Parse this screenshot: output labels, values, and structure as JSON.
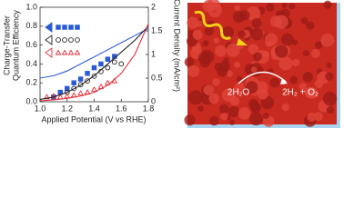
{
  "chart_data": {
    "type": "scatter",
    "xlabel": "Applied Potential (V vs RHE)",
    "ylabel": [
      "Charge-Transfer",
      "Quantum Efficiency"
    ],
    "y2label": "Current Density (mA/cm²)",
    "xlim": [
      1.0,
      1.8
    ],
    "xticks": [
      {
        "value": 1.0,
        "label": "1.0"
      },
      {
        "value": 1.2,
        "label": "1.2"
      },
      {
        "value": 1.4,
        "label": "1.4"
      },
      {
        "value": 1.6,
        "label": "1.6"
      },
      {
        "value": 1.8,
        "label": "1.8"
      }
    ],
    "ylim": [
      0,
      1.0
    ],
    "yticks": [
      {
        "value": 0,
        "label": "0.0"
      },
      0.2,
      0.4,
      0.6,
      0.8,
      {
        "value": 1.0,
        "label": "1.0"
      }
    ],
    "y2lim": [
      0,
      2
    ],
    "y2ticks": [
      0,
      0.5,
      1,
      1.5,
      2
    ],
    "series": [
      {
        "color": "#2a5bd7",
        "marker": "square",
        "filled": true,
        "x": [
          1.1,
          1.15,
          1.2,
          1.25,
          1.3,
          1.35,
          1.4,
          1.45,
          1.5,
          1.55
        ],
        "values": [
          0.05,
          0.1,
          0.14,
          0.2,
          0.24,
          0.3,
          0.36,
          0.4,
          0.45,
          0.48
        ]
      },
      {
        "color": "#222222",
        "marker": "circle",
        "filled": false,
        "x": [
          1.2,
          1.25,
          1.3,
          1.35,
          1.4,
          1.45,
          1.5,
          1.55,
          1.6
        ],
        "values": [
          0.1,
          0.14,
          0.18,
          0.22,
          0.27,
          0.32,
          0.36,
          0.42,
          0.4
        ]
      },
      {
        "color": "#e0303a",
        "marker": "triangle",
        "filled": false,
        "x": [
          1.05,
          1.1,
          1.15,
          1.2,
          1.25,
          1.3,
          1.35,
          1.4,
          1.45,
          1.5,
          1.55
        ],
        "values": [
          0.05,
          0.06,
          0.05,
          0.06,
          0.07,
          0.09,
          0.1,
          0.13,
          0.16,
          0.2,
          0.22
        ]
      },
      {
        "color": "#2a5bd7",
        "type": "line",
        "axis": "y2",
        "x": [
          1.0,
          1.1,
          1.2,
          1.3,
          1.4,
          1.5,
          1.6,
          1.7,
          1.8
        ],
        "values": [
          0.5,
          0.55,
          0.65,
          0.8,
          0.95,
          1.1,
          1.25,
          1.4,
          1.55
        ]
      },
      {
        "color": "#222222",
        "type": "line",
        "axis": "y2",
        "x": [
          1.0,
          1.1,
          1.2,
          1.3,
          1.4,
          1.5,
          1.6,
          1.7,
          1.8
        ],
        "values": [
          0.05,
          0.1,
          0.2,
          0.35,
          0.55,
          0.8,
          1.05,
          1.3,
          1.6
        ]
      },
      {
        "color": "#e0303a",
        "type": "line",
        "axis": "y2",
        "x": [
          1.0,
          1.1,
          1.2,
          1.3,
          1.4,
          1.5,
          1.6,
          1.7,
          1.8
        ],
        "values": [
          0.02,
          0.04,
          0.07,
          0.12,
          0.2,
          0.35,
          0.6,
          1.0,
          1.65
        ]
      }
    ]
  },
  "illustration": {
    "reactant": "2H₂O",
    "products": "2H₂ + O₂"
  }
}
